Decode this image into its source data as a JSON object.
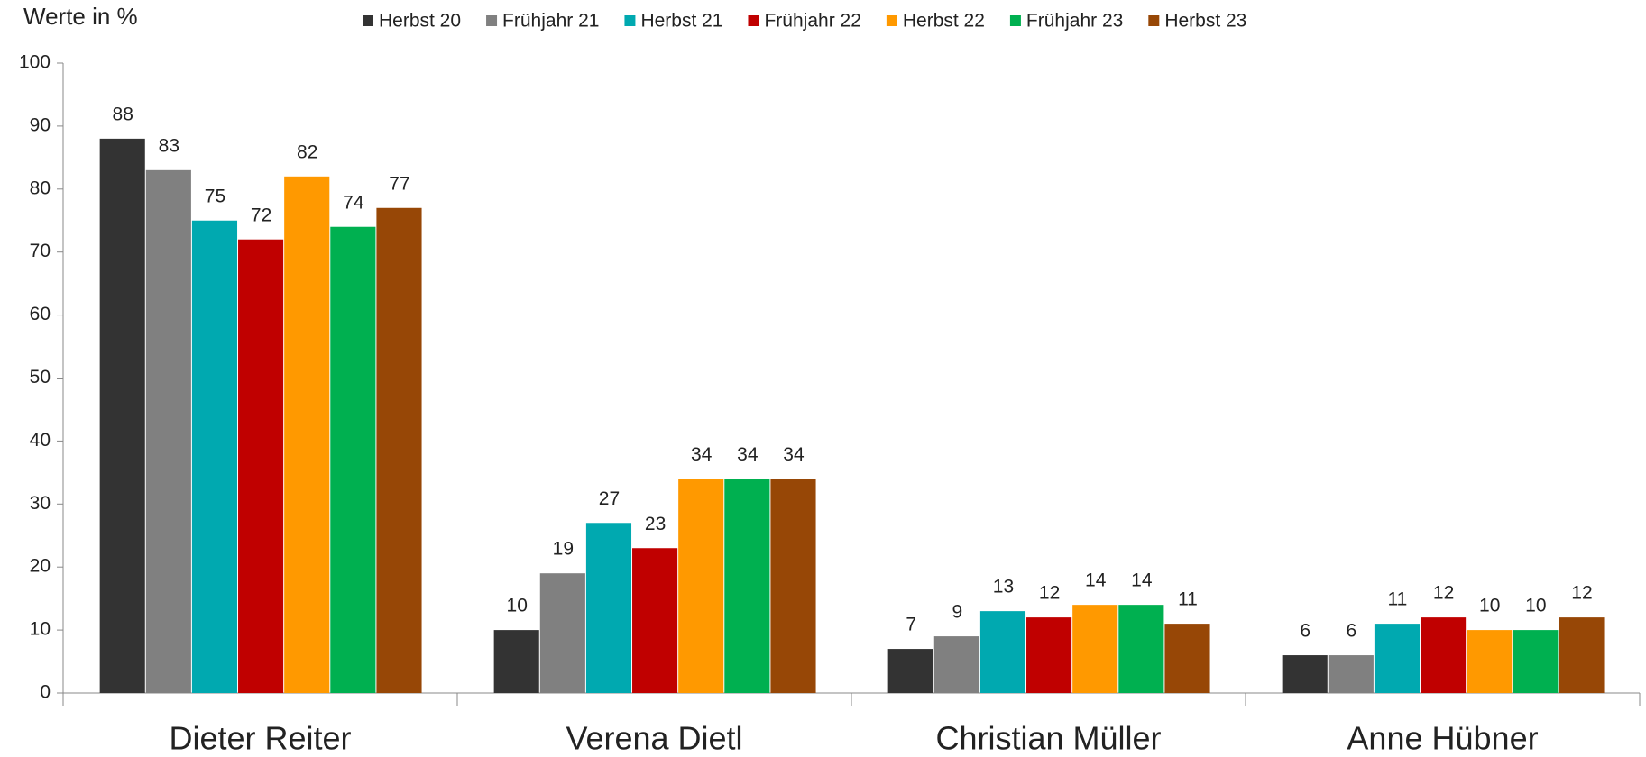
{
  "chart_data": {
    "type": "bar",
    "ylabel": "Werte in %",
    "categories": [
      "Dieter Reiter",
      "Verena Dietl",
      "Christian Müller",
      "Anne Hübner"
    ],
    "series": [
      {
        "name": "Herbst 20",
        "color": "#333333",
        "values": [
          88,
          10,
          7,
          6
        ]
      },
      {
        "name": "Frühjahr 21",
        "color": "#808080",
        "values": [
          83,
          19,
          9,
          6
        ]
      },
      {
        "name": "Herbst 21",
        "color": "#00a9b0",
        "values": [
          75,
          27,
          13,
          11
        ]
      },
      {
        "name": "Frühjahr 22",
        "color": "#c00000",
        "values": [
          72,
          23,
          12,
          12
        ]
      },
      {
        "name": "Herbst 22",
        "color": "#ff9900",
        "values": [
          82,
          34,
          14,
          10
        ]
      },
      {
        "name": "Frühjahr 23",
        "color": "#00b050",
        "values": [
          74,
          34,
          14,
          10
        ]
      },
      {
        "name": "Herbst 23",
        "color": "#974706",
        "values": [
          77,
          34,
          11,
          12
        ]
      }
    ],
    "ylim": [
      0,
      100
    ],
    "yticks": [
      0,
      10,
      20,
      30,
      40,
      50,
      60,
      70,
      80,
      90,
      100
    ],
    "grid": false,
    "legend": "top"
  }
}
